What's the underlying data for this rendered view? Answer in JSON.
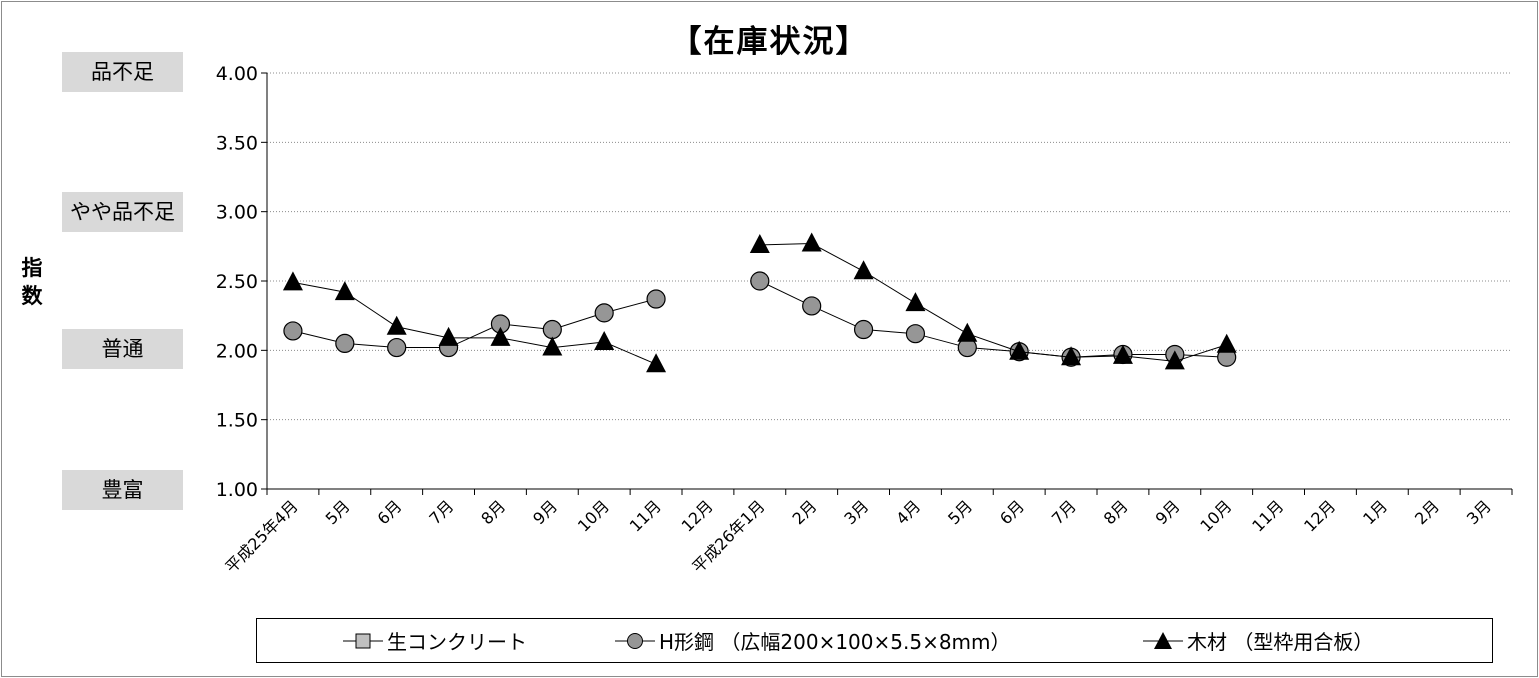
{
  "chart_data": {
    "type": "line",
    "title": "【在庫状況】",
    "ylabel": "指数",
    "ylim": [
      1.0,
      4.0
    ],
    "ytick_labels": [
      "1.00",
      "1.50",
      "2.00",
      "2.50",
      "3.00",
      "3.50",
      "4.00"
    ],
    "grid": true,
    "legend_position": "bottom",
    "band_labels": [
      {
        "value": 4.0,
        "label": "品不足"
      },
      {
        "value": 3.0,
        "label": "やや品不足"
      },
      {
        "value": 2.0,
        "label": "普通"
      },
      {
        "value": 1.0,
        "label": "豊富"
      }
    ],
    "categories": [
      "平成25年4月",
      "5月",
      "6月",
      "7月",
      "8月",
      "9月",
      "10月",
      "11月",
      "12月",
      "平成26年1月",
      "2月",
      "3月",
      "4月",
      "5月",
      "6月",
      "7月",
      "8月",
      "9月",
      "10月",
      "11月",
      "12月",
      "1月",
      "2月",
      "3月"
    ],
    "series": [
      {
        "name": "生コンクリート",
        "marker": "square",
        "values": [
          null,
          null,
          null,
          null,
          null,
          null,
          null,
          null,
          null,
          null,
          null,
          null,
          null,
          null,
          null,
          null,
          null,
          null,
          null,
          null,
          null,
          null,
          null,
          null
        ]
      },
      {
        "name": "H形鋼 （広幅200×100×5.5×8mm）",
        "marker": "circle",
        "values": [
          2.14,
          2.05,
          2.02,
          2.02,
          2.19,
          2.15,
          2.27,
          2.37,
          null,
          2.5,
          2.32,
          2.15,
          2.12,
          2.02,
          1.99,
          1.95,
          1.97,
          1.97,
          1.95,
          null,
          null,
          null,
          null,
          null
        ]
      },
      {
        "name": "木材 （型枠用合板）",
        "marker": "triangle",
        "values": [
          2.49,
          2.42,
          2.17,
          2.09,
          2.09,
          2.02,
          2.06,
          1.9,
          null,
          2.76,
          2.77,
          2.57,
          2.34,
          2.12,
          1.99,
          1.95,
          1.96,
          1.92,
          2.04,
          null,
          null,
          null,
          null,
          null
        ]
      }
    ],
    "colors": {
      "marker_fill_circle": "#969696",
      "marker_fill_square": "#c0c0c0",
      "marker_fill_triangle": "#000000",
      "line": "#000000",
      "band_background": "#d9d9d9",
      "gridline": "#8c8c8c"
    }
  }
}
